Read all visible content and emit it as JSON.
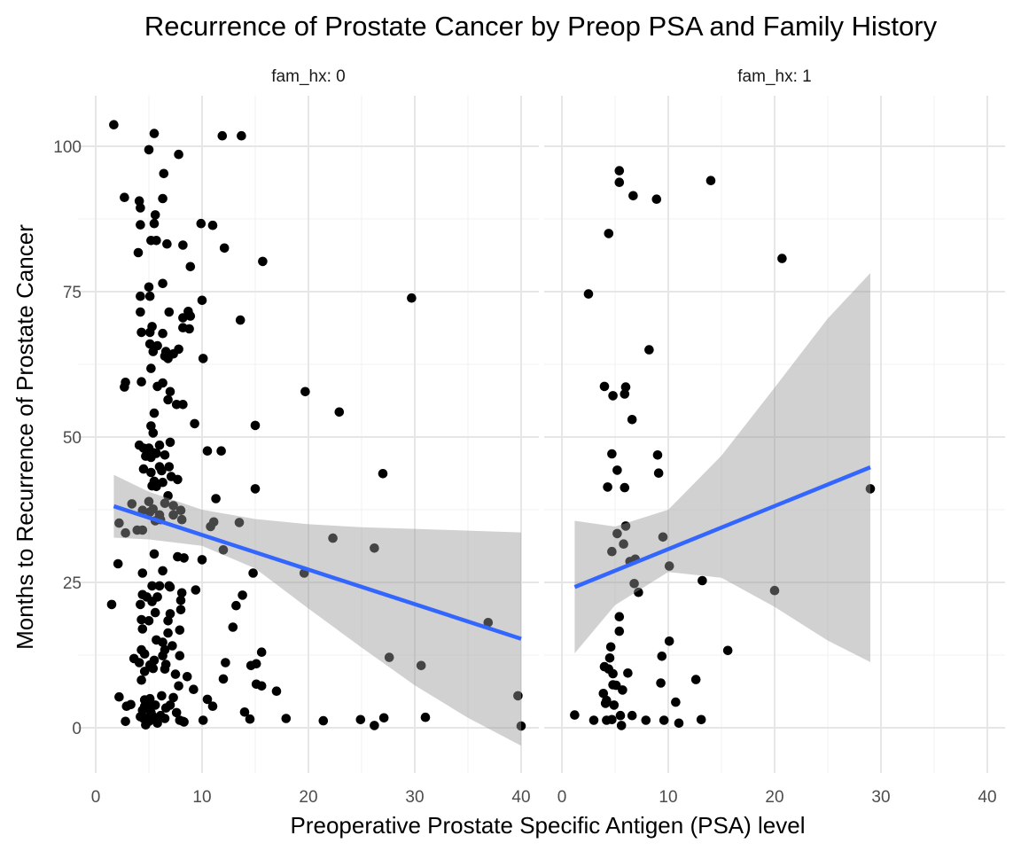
{
  "chart_data": {
    "type": "scatter",
    "title": "Recurrence of Prostate Cancer by Preop PSA and Family History",
    "xlabel": "Preoperative Prostate Specific Antigen (PSA) level",
    "ylabel": "Months to Recurrence of Prostate Cancer",
    "xlim": [
      0,
      40
    ],
    "ylim": [
      0,
      100
    ],
    "x_ticks": [
      0,
      10,
      20,
      30,
      40
    ],
    "y_ticks": [
      0,
      25,
      50,
      75,
      100
    ],
    "grid": true,
    "colors": {
      "points": "#000000",
      "fit_line": "#3366FF",
      "ribbon": "#999999"
    },
    "panels": [
      {
        "label": "fam_hx: 0",
        "points": [
          [
            1.7,
            103.7
          ],
          [
            5.5,
            102.2
          ],
          [
            11.9,
            101.8
          ],
          [
            13.7,
            101.8
          ],
          [
            5.0,
            99.4
          ],
          [
            7.8,
            98.6
          ],
          [
            6.4,
            95.3
          ],
          [
            2.7,
            91.2
          ],
          [
            6.3,
            91.0
          ],
          [
            4.1,
            90.6
          ],
          [
            4.2,
            89.4
          ],
          [
            5.6,
            88.2
          ],
          [
            9.9,
            86.7
          ],
          [
            11.0,
            86.4
          ],
          [
            4.2,
            86.5
          ],
          [
            5.5,
            86.7
          ],
          [
            5.2,
            83.8
          ],
          [
            5.7,
            83.8
          ],
          [
            6.7,
            83.2
          ],
          [
            8.2,
            83.0
          ],
          [
            12.1,
            82.5
          ],
          [
            4.0,
            81.7
          ],
          [
            15.7,
            80.2
          ],
          [
            8.9,
            79.3
          ],
          [
            6.3,
            76.4
          ],
          [
            5.0,
            75.8
          ],
          [
            4.2,
            74.2
          ],
          [
            5.1,
            74.2
          ],
          [
            29.7,
            73.9
          ],
          [
            10.0,
            73.5
          ],
          [
            4.2,
            71.5
          ],
          [
            6.9,
            71.5
          ],
          [
            8.7,
            71.6
          ],
          [
            8.9,
            70.8
          ],
          [
            8.2,
            70.5
          ],
          [
            13.6,
            70.1
          ],
          [
            5.3,
            69.0
          ],
          [
            4.3,
            68.0
          ],
          [
            5.1,
            68.0
          ],
          [
            6.3,
            67.8
          ],
          [
            8.8,
            68.6
          ],
          [
            8.2,
            68.8
          ],
          [
            5.1,
            66.0
          ],
          [
            5.8,
            65.7
          ],
          [
            6.6,
            64.7
          ],
          [
            7.8,
            65.1
          ],
          [
            5.4,
            64.7
          ],
          [
            6.5,
            63.9
          ],
          [
            7.3,
            64.3
          ],
          [
            10.1,
            63.5
          ],
          [
            6.8,
            63.5
          ],
          [
            5.2,
            61.8
          ],
          [
            4.3,
            59.5
          ],
          [
            2.8,
            59.4
          ],
          [
            2.7,
            58.6
          ],
          [
            5.8,
            58.7
          ],
          [
            6.3,
            59.3
          ],
          [
            7.0,
            57.8
          ],
          [
            19.7,
            57.8
          ],
          [
            6.8,
            56.4
          ],
          [
            7.6,
            55.6
          ],
          [
            8.2,
            55.6
          ],
          [
            5.5,
            54.1
          ],
          [
            22.9,
            54.3
          ],
          [
            9.3,
            52.3
          ],
          [
            5.2,
            51.9
          ],
          [
            15.0,
            52.0
          ],
          [
            5.4,
            50.7
          ],
          [
            6.0,
            48.6
          ],
          [
            5.0,
            48.1
          ],
          [
            7.0,
            49.1
          ],
          [
            4.1,
            48.6
          ],
          [
            4.5,
            48.1
          ],
          [
            5.4,
            47.3
          ],
          [
            4.7,
            46.7
          ],
          [
            5.2,
            46.5
          ],
          [
            5.7,
            47.2
          ],
          [
            6.5,
            46.9
          ],
          [
            10.5,
            47.6
          ],
          [
            11.8,
            47.6
          ],
          [
            6.0,
            44.9
          ],
          [
            6.9,
            44.9
          ],
          [
            4.5,
            44.5
          ],
          [
            6.2,
            44.2
          ],
          [
            5.2,
            43.9
          ],
          [
            7.1,
            43.2
          ],
          [
            7.7,
            42.7
          ],
          [
            5.5,
            42.4
          ],
          [
            6.3,
            42.2
          ],
          [
            5.3,
            41.6
          ],
          [
            5.7,
            41.5
          ],
          [
            15.0,
            41.1
          ],
          [
            27.0,
            43.7
          ],
          [
            6.8,
            39.9
          ],
          [
            11.3,
            39.4
          ],
          [
            6.5,
            38.6
          ],
          [
            7.3,
            38.2
          ],
          [
            3.4,
            38.5
          ],
          [
            5.0,
            38.9
          ],
          [
            5.4,
            37.6
          ],
          [
            8.0,
            37.4
          ],
          [
            4.4,
            37.4
          ],
          [
            5.1,
            37.1
          ],
          [
            6.0,
            36.6
          ],
          [
            7.3,
            36.6
          ],
          [
            6.1,
            35.8
          ],
          [
            8.1,
            35.8
          ],
          [
            2.2,
            35.2
          ],
          [
            11.1,
            35.4
          ],
          [
            13.5,
            35.3
          ],
          [
            10.8,
            34.6
          ],
          [
            3.9,
            34.0
          ],
          [
            4.4,
            34.0
          ],
          [
            2.8,
            33.5
          ],
          [
            5.6,
            35.6
          ],
          [
            22.3,
            32.6
          ],
          [
            26.2,
            30.9
          ],
          [
            12.0,
            30.6
          ],
          [
            5.5,
            29.9
          ],
          [
            7.7,
            29.4
          ],
          [
            8.3,
            29.2
          ],
          [
            10.0,
            28.9
          ],
          [
            2.1,
            28.2
          ],
          [
            6.3,
            27.0
          ],
          [
            4.4,
            26.6
          ],
          [
            19.6,
            26.6
          ],
          [
            14.8,
            26.6
          ],
          [
            5.3,
            24.4
          ],
          [
            6.0,
            24.4
          ],
          [
            6.9,
            24.4
          ],
          [
            7.0,
            24.2
          ],
          [
            9.4,
            23.7
          ],
          [
            8.1,
            23.2
          ],
          [
            4.4,
            22.9
          ],
          [
            4.8,
            22.5
          ],
          [
            5.8,
            22.5
          ],
          [
            13.8,
            22.8
          ],
          [
            5.3,
            21.7
          ],
          [
            8.0,
            21.9
          ],
          [
            1.5,
            21.2
          ],
          [
            4.2,
            21.2
          ],
          [
            13.2,
            21.0
          ],
          [
            8.0,
            20.3
          ],
          [
            5.6,
            19.8
          ],
          [
            7.0,
            19.6
          ],
          [
            4.3,
            18.6
          ],
          [
            5.0,
            18.4
          ],
          [
            6.8,
            18.4
          ],
          [
            4.4,
            17.0
          ],
          [
            7.9,
            16.8
          ],
          [
            12.9,
            17.3
          ],
          [
            6.8,
            16.3
          ],
          [
            5.7,
            15.1
          ],
          [
            6.3,
            14.7
          ],
          [
            7.2,
            14.1
          ],
          [
            4.3,
            13.4
          ],
          [
            6.5,
            13.4
          ],
          [
            15.6,
            13.0
          ],
          [
            4.6,
            12.7
          ],
          [
            6.3,
            12.4
          ],
          [
            7.9,
            12.4
          ],
          [
            3.6,
            11.9
          ],
          [
            5.5,
            11.6
          ],
          [
            4.1,
            11.2
          ],
          [
            5.1,
            10.8
          ],
          [
            6.6,
            10.9
          ],
          [
            12.2,
            11.2
          ],
          [
            14.6,
            10.7
          ],
          [
            15.1,
            11.0
          ],
          [
            5.4,
            10.2
          ],
          [
            6.5,
            10.1
          ],
          [
            4.6,
            9.7
          ],
          [
            7.5,
            9.2
          ],
          [
            8.6,
            8.8
          ],
          [
            4.3,
            8.2
          ],
          [
            12.0,
            8.4
          ],
          [
            7.8,
            7.2
          ],
          [
            15.1,
            7.5
          ],
          [
            15.6,
            7.2
          ],
          [
            9.2,
            6.6
          ],
          [
            17.0,
            6.3
          ],
          [
            2.2,
            5.3
          ],
          [
            6.2,
            5.5
          ],
          [
            7.3,
            5.2
          ],
          [
            5.1,
            5.0
          ],
          [
            4.6,
            4.8
          ],
          [
            10.5,
            4.9
          ],
          [
            3.3,
            4.0
          ],
          [
            2.9,
            3.7
          ],
          [
            5.6,
            3.9
          ],
          [
            4.6,
            3.7
          ],
          [
            7.0,
            3.9
          ],
          [
            5.0,
            3.5
          ],
          [
            6.6,
            3.4
          ],
          [
            11.0,
            3.7
          ],
          [
            4.4,
            3.0
          ],
          [
            14.0,
            2.7
          ],
          [
            5.2,
            2.6
          ],
          [
            7.6,
            2.6
          ],
          [
            6.1,
            2.1
          ],
          [
            4.2,
            1.9
          ],
          [
            5.4,
            1.9
          ],
          [
            4.9,
            1.7
          ],
          [
            6.5,
            1.6
          ],
          [
            4.5,
            1.6
          ],
          [
            7.9,
            1.3
          ],
          [
            8.2,
            1.1
          ],
          [
            10.1,
            1.3
          ],
          [
            14.5,
            1.5
          ],
          [
            17.9,
            1.6
          ],
          [
            21.4,
            1.2
          ],
          [
            24.9,
            1.4
          ],
          [
            26.2,
            0.4
          ],
          [
            27.1,
            1.7
          ],
          [
            31.0,
            1.8
          ],
          [
            5.0,
            1.1
          ],
          [
            2.8,
            1.1
          ],
          [
            5.8,
            0.8
          ],
          [
            4.7,
            0.5
          ],
          [
            40.0,
            0.3
          ],
          [
            8.3,
            1.0
          ],
          [
            36.9,
            18.1
          ],
          [
            27.6,
            12.1
          ],
          [
            30.6,
            10.7
          ],
          [
            39.7,
            5.5
          ]
        ],
        "fit": {
          "x": [
            1.7,
            40.0
          ],
          "y": [
            38.1,
            15.3
          ]
        },
        "ribbon": {
          "x": [
            1.7,
            5.0,
            10.0,
            15.0,
            20.0,
            25.0,
            30.0,
            35.0,
            40.0
          ],
          "upper": [
            43.5,
            40.6,
            37.5,
            35.9,
            35.0,
            34.5,
            34.2,
            33.9,
            33.6
          ],
          "lower": [
            32.7,
            32.4,
            31.3,
            27.4,
            20.5,
            13.8,
            7.3,
            1.7,
            -3.1
          ]
        }
      },
      {
        "label": "fam_hx: 1",
        "points": [
          [
            5.4,
            95.8
          ],
          [
            5.4,
            93.8
          ],
          [
            14.0,
            94.1
          ],
          [
            6.7,
            91.5
          ],
          [
            8.9,
            90.9
          ],
          [
            4.4,
            85.0
          ],
          [
            20.7,
            80.7
          ],
          [
            2.5,
            74.6
          ],
          [
            8.2,
            65.0
          ],
          [
            4.0,
            58.7
          ],
          [
            6.0,
            58.6
          ],
          [
            5.9,
            57.4
          ],
          [
            4.8,
            57.1
          ],
          [
            6.6,
            53.0
          ],
          [
            4.7,
            47.1
          ],
          [
            9.0,
            46.9
          ],
          [
            5.2,
            44.3
          ],
          [
            9.1,
            43.8
          ],
          [
            4.3,
            41.4
          ],
          [
            5.9,
            41.3
          ],
          [
            29.0,
            41.1
          ],
          [
            6.0,
            34.7
          ],
          [
            5.2,
            33.4
          ],
          [
            9.5,
            32.8
          ],
          [
            5.8,
            31.6
          ],
          [
            4.7,
            30.3
          ],
          [
            6.4,
            28.6
          ],
          [
            6.9,
            29.0
          ],
          [
            10.1,
            27.8
          ],
          [
            13.2,
            25.3
          ],
          [
            6.8,
            24.8
          ],
          [
            20.0,
            23.6
          ],
          [
            7.2,
            23.3
          ],
          [
            5.4,
            19.1
          ],
          [
            5.4,
            16.6
          ],
          [
            10.1,
            14.9
          ],
          [
            4.6,
            13.9
          ],
          [
            4.5,
            12.0
          ],
          [
            9.4,
            12.3
          ],
          [
            15.6,
            13.3
          ],
          [
            4.0,
            10.5
          ],
          [
            4.4,
            10.1
          ],
          [
            6.2,
            9.4
          ],
          [
            4.8,
            9.3
          ],
          [
            12.6,
            8.3
          ],
          [
            4.8,
            7.4
          ],
          [
            5.1,
            7.3
          ],
          [
            9.3,
            7.7
          ],
          [
            5.7,
            6.5
          ],
          [
            3.9,
            5.9
          ],
          [
            4.2,
            4.7
          ],
          [
            4.1,
            4.2
          ],
          [
            4.9,
            3.9
          ],
          [
            10.7,
            4.4
          ],
          [
            1.2,
            2.2
          ],
          [
            5.5,
            2.1
          ],
          [
            6.6,
            2.1
          ],
          [
            3.0,
            1.3
          ],
          [
            4.2,
            1.3
          ],
          [
            4.7,
            1.4
          ],
          [
            7.9,
            1.3
          ],
          [
            9.6,
            1.3
          ],
          [
            13.1,
            1.4
          ],
          [
            11.0,
            0.8
          ],
          [
            5.6,
            0.4
          ]
        ],
        "fit": {
          "x": [
            1.2,
            29.0
          ],
          "y": [
            24.2,
            44.8
          ]
        },
        "ribbon": {
          "x": [
            1.2,
            5.0,
            10.0,
            15.0,
            20.0,
            25.0,
            29.0
          ],
          "upper": [
            35.6,
            34.6,
            37.5,
            46.8,
            58.5,
            70.4,
            78.2
          ],
          "lower": [
            12.8,
            21.1,
            26.8,
            25.8,
            20.8,
            15.0,
            11.3
          ]
        }
      }
    ]
  }
}
